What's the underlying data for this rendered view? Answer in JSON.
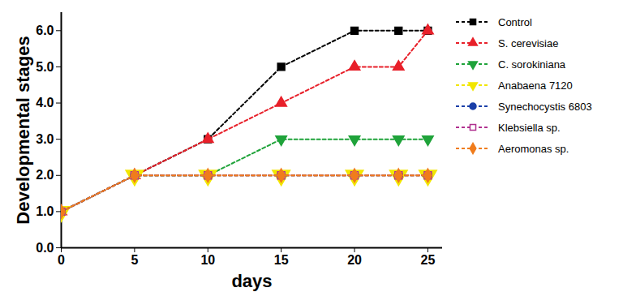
{
  "chart_data": {
    "type": "line",
    "xlabel": "days",
    "ylabel": "Developmental stages",
    "x": [
      0,
      5,
      10,
      15,
      20,
      23,
      25
    ],
    "xlim": [
      0,
      26
    ],
    "xticks": [
      0,
      5,
      10,
      15,
      20,
      25
    ],
    "ylim": [
      0,
      6.5
    ],
    "yticks": [
      0,
      1,
      2,
      3,
      4,
      5,
      6
    ],
    "grid": false,
    "legend": "right",
    "series": [
      {
        "name": "Control",
        "color": "#000000",
        "marker": "square",
        "line_style": "dashed",
        "values": [
          1,
          2,
          3,
          5,
          6,
          6,
          6
        ]
      },
      {
        "name": "S. cerevisiae",
        "color": "#e8202a",
        "marker": "triangle",
        "line_style": "dashed",
        "values": [
          1,
          2,
          3,
          4,
          5,
          5,
          6
        ]
      },
      {
        "name": "C. sorokiniana",
        "color": "#1fa33a",
        "marker": "triangle-down",
        "line_style": "dashed",
        "values": [
          1,
          2,
          2,
          3,
          3,
          3,
          3
        ]
      },
      {
        "name": "Anabaena 7120",
        "color": "#f2e600",
        "marker": "triangle-down",
        "line_style": "dashed",
        "values": [
          1,
          2,
          2,
          2,
          2,
          2,
          2
        ]
      },
      {
        "name": "Synechocystis 6803",
        "color": "#1a3fa8",
        "marker": "circle",
        "line_style": "dashed",
        "values": [
          1,
          2,
          2,
          2,
          2,
          2,
          2
        ]
      },
      {
        "name": "Klebsiella sp.",
        "color": "#b0308f",
        "marker": "square-open",
        "line_style": "dashed",
        "values": [
          1,
          2,
          2,
          2,
          2,
          2,
          2
        ]
      },
      {
        "name": "Aeromonas sp.",
        "color": "#f07c1c",
        "marker": "diamond",
        "line_style": "dashed",
        "values": [
          1,
          2,
          2,
          2,
          2,
          2,
          2
        ]
      }
    ]
  }
}
